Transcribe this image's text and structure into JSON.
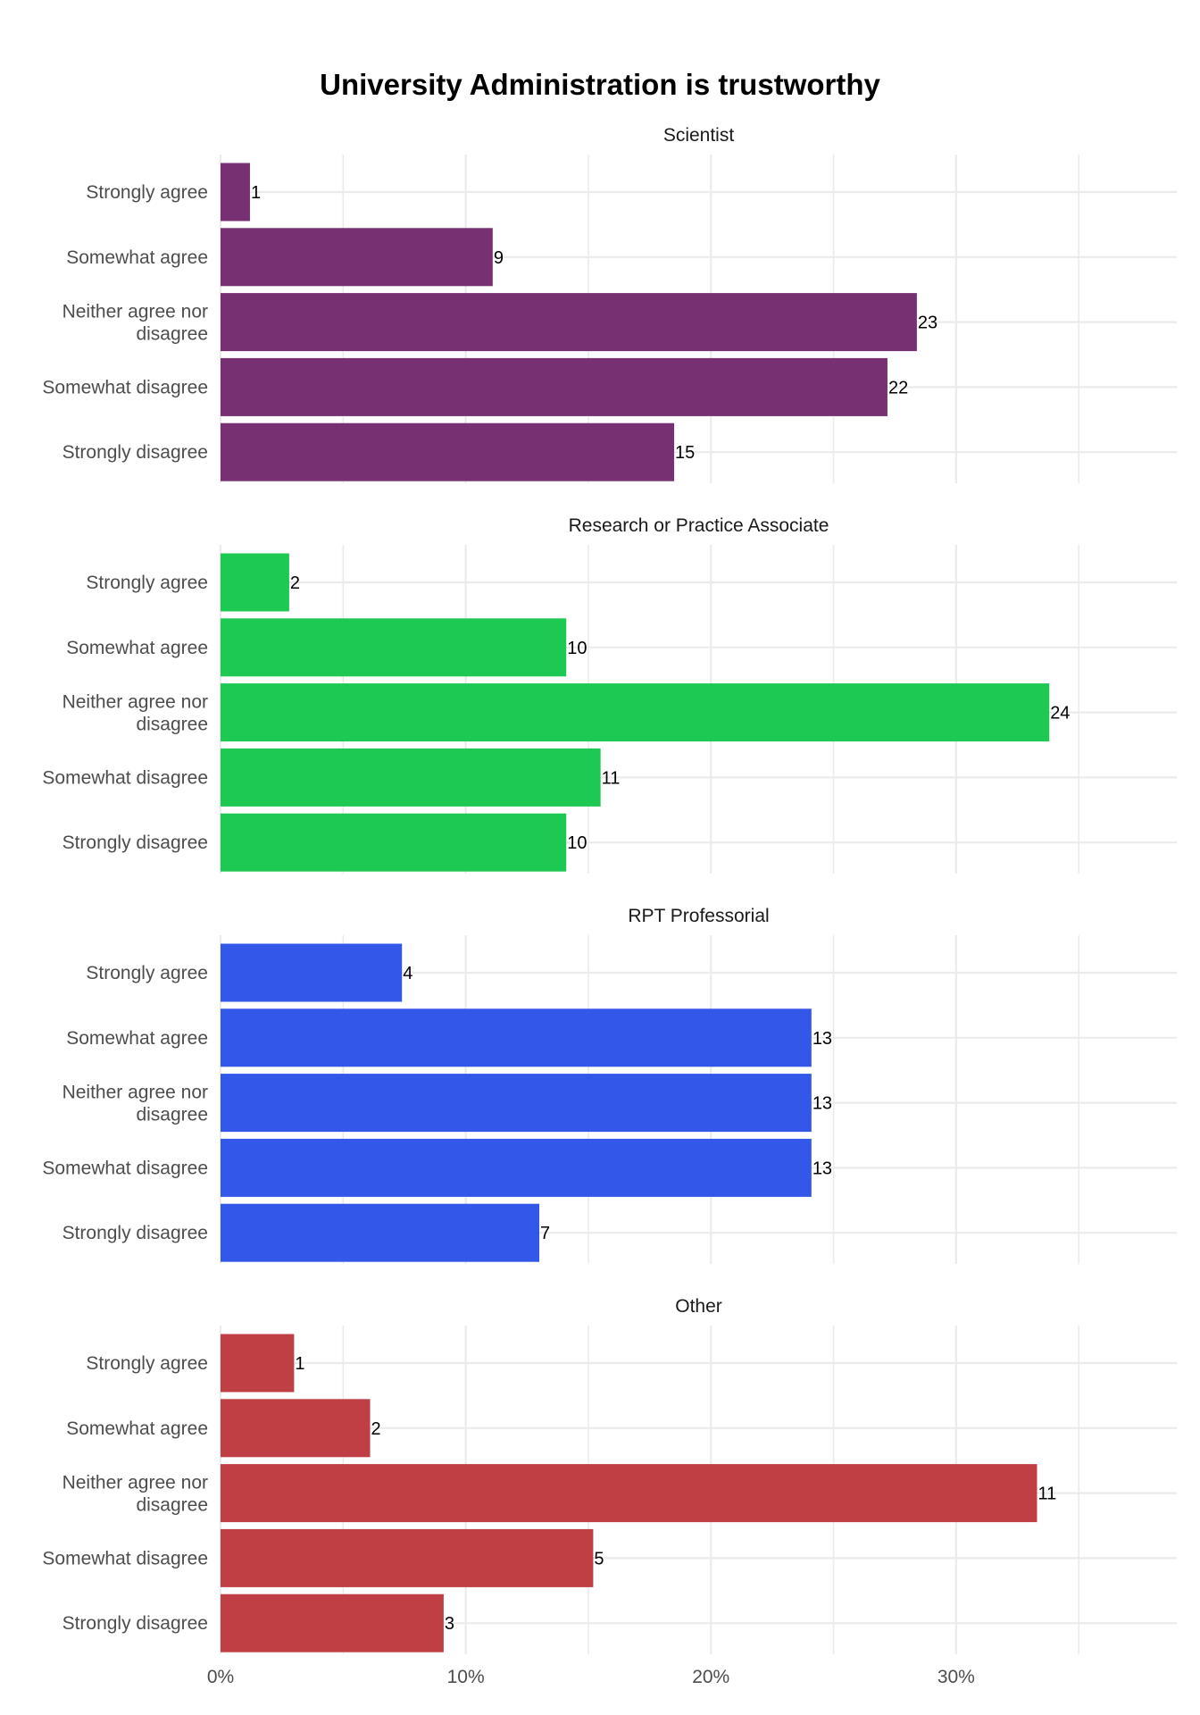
{
  "chart_data": {
    "type": "bar",
    "orientation": "horizontal",
    "title": "University Administration is trustworthy",
    "xlabel": "",
    "ylabel": "",
    "x_unit": "percent",
    "xlim": [
      0,
      39
    ],
    "x_ticks": [
      0,
      10,
      20,
      30
    ],
    "x_tick_labels": [
      "0%",
      "10%",
      "20%",
      "30%"
    ],
    "grid": true,
    "legend": "none",
    "categories": [
      "Strongly agree",
      "Somewhat agree",
      "Neither agree nor disagree",
      "Somewhat disagree",
      "Strongly disagree"
    ],
    "category_display": [
      [
        "Strongly agree"
      ],
      [
        "Somewhat agree"
      ],
      [
        "Neither agree nor",
        "disagree"
      ],
      [
        "Somewhat disagree"
      ],
      [
        "Strongly disagree"
      ]
    ],
    "facets": [
      {
        "name": "Scientist",
        "color": "#773173",
        "counts": [
          1,
          9,
          23,
          22,
          15
        ],
        "percents": [
          1.2,
          11.1,
          28.4,
          27.2,
          18.5
        ]
      },
      {
        "name": "Research or Practice Associate",
        "color": "#1dc853",
        "counts": [
          2,
          10,
          24,
          11,
          10
        ],
        "percents": [
          2.8,
          14.1,
          33.8,
          15.5,
          14.1
        ]
      },
      {
        "name": "RPT Professorial",
        "color": "#3357e9",
        "counts": [
          4,
          13,
          13,
          13,
          7
        ],
        "percents": [
          7.4,
          24.1,
          24.1,
          24.1,
          13.0
        ]
      },
      {
        "name": "Other",
        "color": "#c03f45",
        "counts": [
          1,
          2,
          11,
          5,
          3
        ],
        "percents": [
          3.0,
          6.1,
          33.3,
          15.2,
          9.1
        ]
      }
    ]
  }
}
